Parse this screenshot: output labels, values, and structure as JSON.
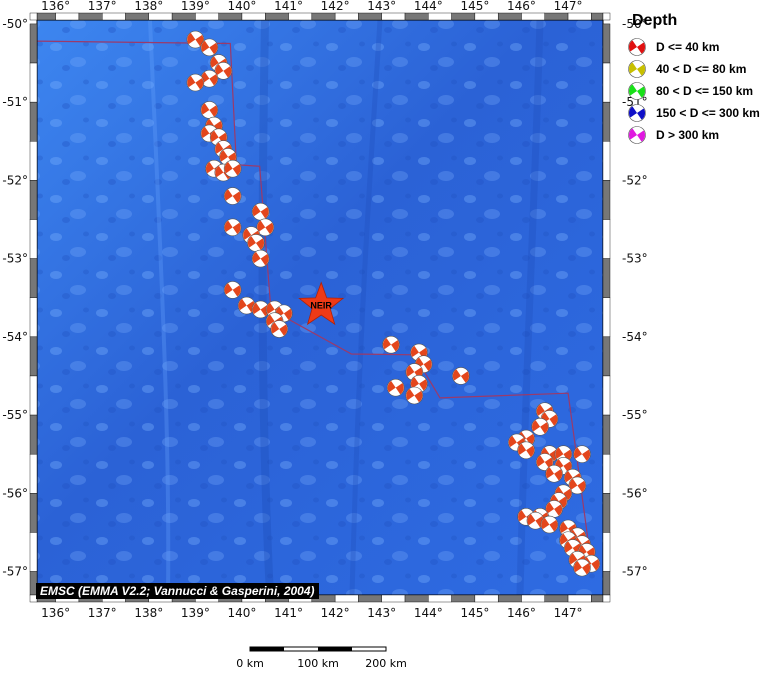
{
  "map": {
    "lon_labels": [
      "136°",
      "137°",
      "138°",
      "139°",
      "140°",
      "141°",
      "142°",
      "143°",
      "144°",
      "145°",
      "146°",
      "147°"
    ],
    "lon_values": [
      136,
      137,
      138,
      139,
      140,
      141,
      142,
      143,
      144,
      145,
      146,
      147
    ],
    "lat_labels": [
      "-50°",
      "-51°",
      "-52°",
      "-53°",
      "-54°",
      "-55°",
      "-56°",
      "-57°"
    ],
    "lat_values": [
      -50,
      -51,
      -52,
      -53,
      -54,
      -55,
      -56,
      -57
    ],
    "extent": {
      "lon_min": 135.6,
      "lon_max": 147.75,
      "lat_min": -57.3,
      "lat_max": -49.95
    },
    "colors": {
      "ocean": "#2f6fe0",
      "plate_boundary": "#9b3a6a",
      "focal_fill": "#e3461c",
      "star": "#ee3a16"
    },
    "plate_boundary": [
      [
        135.6,
        -50.22
      ],
      [
        139.75,
        -50.25
      ],
      [
        139.88,
        -51.8
      ],
      [
        140.38,
        -51.82
      ],
      [
        140.62,
        -53.65
      ],
      [
        142.35,
        -54.22
      ],
      [
        143.7,
        -54.23
      ],
      [
        144.25,
        -54.78
      ],
      [
        147.0,
        -54.72
      ],
      [
        147.52,
        -57.0
      ]
    ],
    "station": {
      "label": "NEIR",
      "lon": 141.7,
      "lat": -53.6
    }
  },
  "events": [
    [
      139.0,
      -50.2
    ],
    [
      139.3,
      -50.3
    ],
    [
      139.5,
      -50.5
    ],
    [
      139.6,
      -50.6
    ],
    [
      139.3,
      -50.7
    ],
    [
      139.0,
      -50.75
    ],
    [
      139.3,
      -51.1
    ],
    [
      139.4,
      -51.3
    ],
    [
      139.3,
      -51.4
    ],
    [
      139.5,
      -51.45
    ],
    [
      139.6,
      -51.6
    ],
    [
      139.7,
      -51.7
    ],
    [
      139.4,
      -51.85
    ],
    [
      139.6,
      -51.9
    ],
    [
      139.8,
      -51.85
    ],
    [
      139.8,
      -52.2
    ],
    [
      140.4,
      -52.4
    ],
    [
      140.5,
      -52.6
    ],
    [
      139.8,
      -52.6
    ],
    [
      140.2,
      -52.7
    ],
    [
      140.3,
      -52.8
    ],
    [
      140.4,
      -53.0
    ],
    [
      139.8,
      -53.4
    ],
    [
      140.1,
      -53.6
    ],
    [
      140.4,
      -53.65
    ],
    [
      140.7,
      -53.65
    ],
    [
      140.9,
      -53.7
    ],
    [
      140.7,
      -53.8
    ],
    [
      140.8,
      -53.9
    ],
    [
      143.2,
      -54.1
    ],
    [
      143.8,
      -54.2
    ],
    [
      143.9,
      -54.35
    ],
    [
      143.7,
      -54.45
    ],
    [
      143.8,
      -54.6
    ],
    [
      143.3,
      -54.65
    ],
    [
      143.7,
      -54.75
    ],
    [
      144.7,
      -54.5
    ],
    [
      146.5,
      -54.95
    ],
    [
      146.6,
      -55.05
    ],
    [
      146.4,
      -55.15
    ],
    [
      146.1,
      -55.3
    ],
    [
      145.9,
      -55.35
    ],
    [
      146.1,
      -55.45
    ],
    [
      146.6,
      -55.5
    ],
    [
      146.9,
      -55.5
    ],
    [
      147.3,
      -55.5
    ],
    [
      146.5,
      -55.6
    ],
    [
      146.9,
      -55.65
    ],
    [
      146.7,
      -55.75
    ],
    [
      147.1,
      -55.8
    ],
    [
      147.2,
      -55.9
    ],
    [
      146.9,
      -56.0
    ],
    [
      146.8,
      -56.1
    ],
    [
      146.7,
      -56.2
    ],
    [
      146.4,
      -56.3
    ],
    [
      146.1,
      -56.3
    ],
    [
      146.3,
      -56.35
    ],
    [
      146.6,
      -56.4
    ],
    [
      147.0,
      -56.45
    ],
    [
      147.2,
      -56.55
    ],
    [
      147.0,
      -56.6
    ],
    [
      147.3,
      -56.65
    ],
    [
      147.1,
      -56.7
    ],
    [
      147.4,
      -56.75
    ],
    [
      147.2,
      -56.85
    ],
    [
      147.5,
      -56.9
    ],
    [
      147.3,
      -56.95
    ]
  ],
  "legend": {
    "title": "Depth",
    "items": [
      {
        "label": "D <= 40 km",
        "color": "#e01010"
      },
      {
        "label": "40 < D <= 80 km",
        "color": "#c8c000"
      },
      {
        "label": "80 < D <= 150 km",
        "color": "#18e018"
      },
      {
        "label": "150 < D <= 300 km",
        "color": "#1010c8"
      },
      {
        "label": "D > 300 km",
        "color": "#e018e0"
      }
    ]
  },
  "credit": "EMSC (EMMA V2.2; Vannucci & Gasperini, 2004)",
  "scale_bar": {
    "labels": [
      "0 km",
      "100 km",
      "200 km"
    ]
  }
}
